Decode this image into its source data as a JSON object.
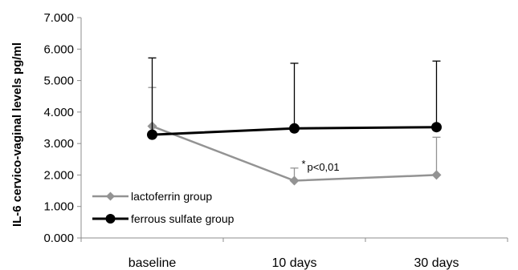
{
  "chart_data": {
    "type": "line",
    "title": "",
    "xlabel": "",
    "ylabel": "IL-6 cervico-vaginal levels pg/ml",
    "ylim": [
      0,
      7
    ],
    "y_ticks": [
      "0.000",
      "1.000",
      "2.000",
      "3.000",
      "4.000",
      "5.000",
      "6.000",
      "7.000"
    ],
    "categories": [
      "baseline",
      "10 days",
      "30 days"
    ],
    "grid": false,
    "legend_position": "bottom-left",
    "series": [
      {
        "name": "lactoferrin group",
        "color": "#939393",
        "marker": "diamond",
        "values": [
          3.55,
          1.82,
          2.0
        ],
        "error_upper": [
          4.78,
          2.22,
          3.2
        ]
      },
      {
        "name": "ferrous sulfate group",
        "color": "#000000",
        "marker": "circle",
        "values": [
          3.28,
          3.48,
          3.52
        ],
        "error_upper": [
          5.72,
          5.55,
          5.62
        ]
      }
    ],
    "annotations": [
      {
        "category": "10 days",
        "value": 2.22,
        "star": "*",
        "text": "p<0,01"
      }
    ]
  }
}
